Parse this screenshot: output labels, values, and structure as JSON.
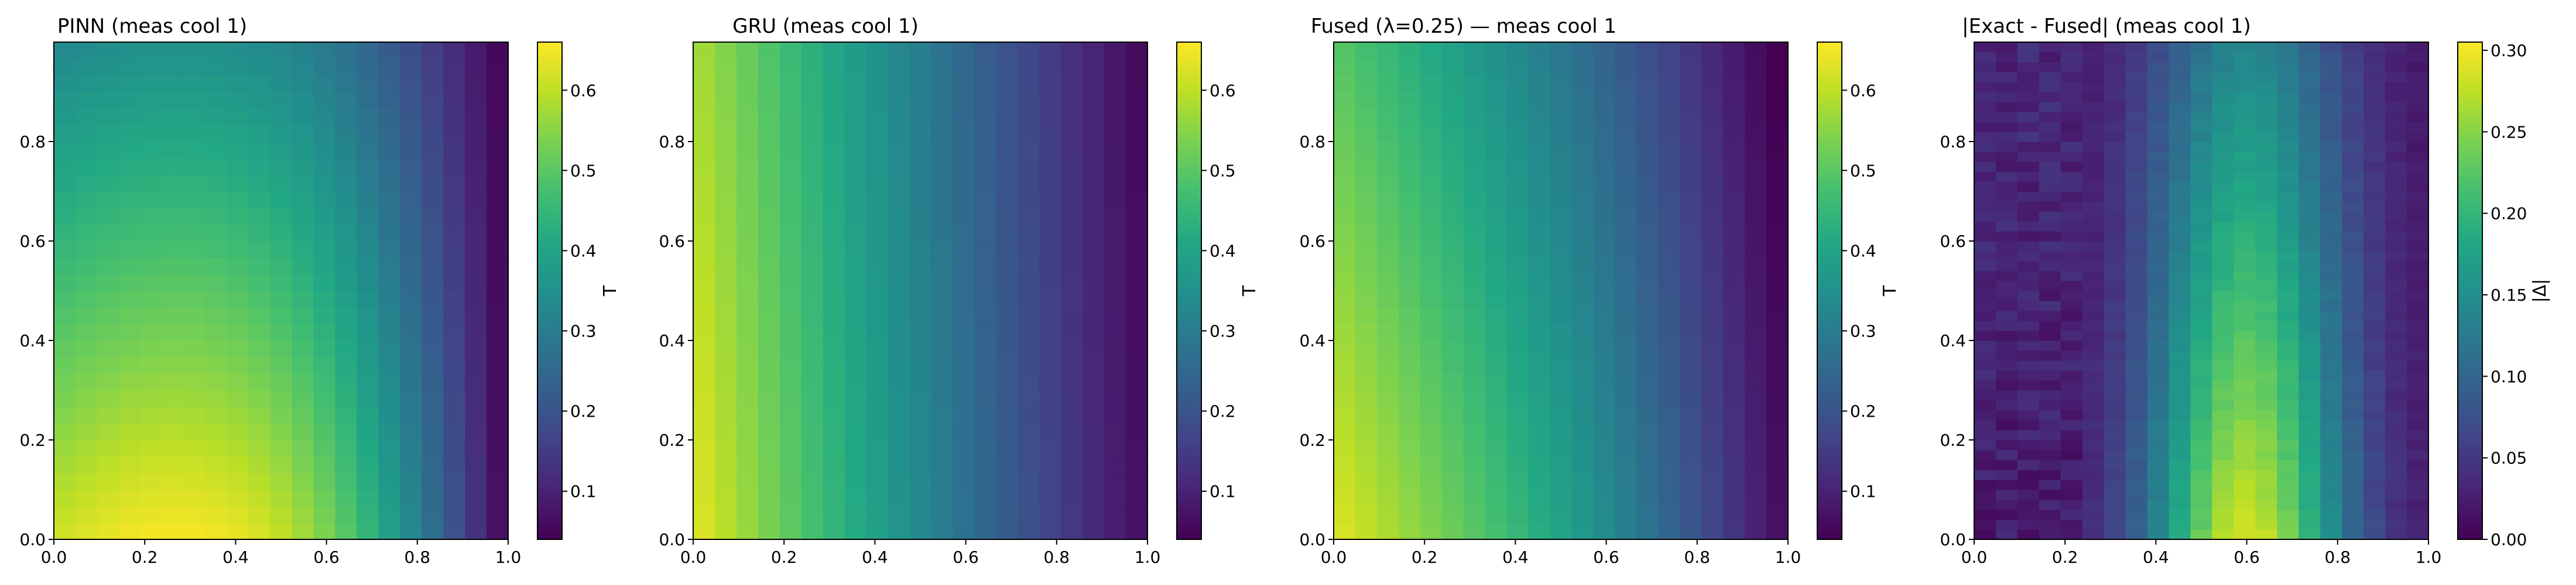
{
  "chart_data": [
    {
      "type": "heatmap",
      "title": "PINN (meas cool 1)",
      "xlabel": "",
      "ylabel": "",
      "xlim": [
        0,
        1
      ],
      "ylim": [
        0,
        1
      ],
      "xticks": [
        "0.0",
        "0.2",
        "0.4",
        "0.6",
        "0.8",
        "1.0"
      ],
      "yticks": [
        "0.0",
        "0.2",
        "0.4",
        "0.6",
        "0.8"
      ],
      "colormap": "viridis",
      "colorbar": {
        "label": "T",
        "range": [
          0.04,
          0.66
        ],
        "ticks": [
          "0.1",
          "0.2",
          "0.3",
          "0.4",
          "0.5",
          "0.6"
        ]
      },
      "field_description": "peak about 0.65 near x=0.3, y=0; cooler toward the right edge and the top"
    },
    {
      "type": "heatmap",
      "title": "GRU (meas cool 1)",
      "xlabel": "",
      "ylabel": "",
      "xlim": [
        0,
        1
      ],
      "ylim": [
        0,
        1
      ],
      "xticks": [
        "0.0",
        "0.2",
        "0.4",
        "0.6",
        "0.8",
        "1.0"
      ],
      "yticks": [
        "0.0",
        "0.2",
        "0.4",
        "0.6",
        "0.8"
      ],
      "colormap": "viridis",
      "colorbar": {
        "label": "T",
        "range": [
          0.04,
          0.66
        ],
        "ticks": [
          "0.1",
          "0.2",
          "0.3",
          "0.4",
          "0.5",
          "0.6"
        ]
      },
      "field_description": "highest about 0.64 at x=0 decreasing toward about 0.05 at x=1"
    },
    {
      "type": "heatmap",
      "title": "Fused (λ=0.25) — meas cool 1",
      "xlabel": "",
      "ylabel": "",
      "xlim": [
        0,
        1
      ],
      "ylim": [
        0,
        1
      ],
      "xticks": [
        "0.0",
        "0.2",
        "0.4",
        "0.6",
        "0.8",
        "1.0"
      ],
      "yticks": [
        "0.0",
        "0.2",
        "0.4",
        "0.6",
        "0.8"
      ],
      "colormap": "viridis",
      "colorbar": {
        "label": "T",
        "range": [
          0.04,
          0.66
        ],
        "ticks": [
          "0.1",
          "0.2",
          "0.3",
          "0.4",
          "0.5",
          "0.6"
        ]
      },
      "field_description": "blend with peak about 0.6 near x=0.1, y=0; cool toward the right edge"
    },
    {
      "type": "heatmap",
      "title": "|Exact - Fused| (meas cool 1)",
      "xlabel": "",
      "ylabel": "",
      "xlim": [
        0,
        1
      ],
      "ylim": [
        0,
        1
      ],
      "xticks": [
        "0.0",
        "0.2",
        "0.4",
        "0.6",
        "0.8",
        "1.0"
      ],
      "yticks": [
        "0.0",
        "0.2",
        "0.4",
        "0.6",
        "0.8"
      ],
      "colormap": "viridis",
      "colorbar": {
        "label": "|Δ|",
        "range": [
          0.0,
          0.305
        ],
        "ticks": [
          "0.00",
          "0.05",
          "0.10",
          "0.15",
          "0.20",
          "0.25",
          "0.30"
        ]
      },
      "field_description": "error near 0 for x<0.25, peak about 0.27 near x=0.6, y=0"
    }
  ]
}
